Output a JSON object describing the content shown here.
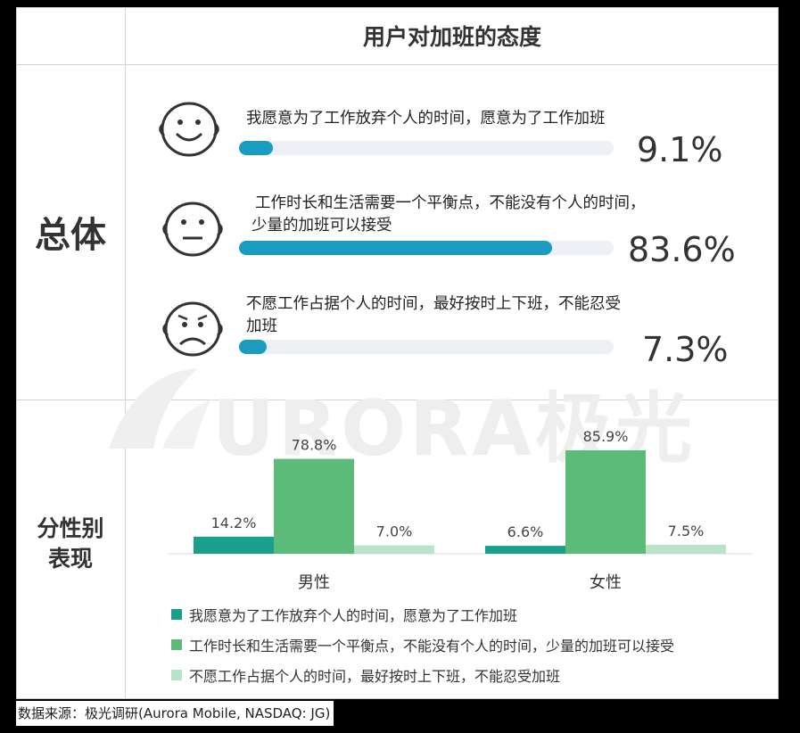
{
  "title": "用户对加班的态度",
  "overall_label": "总体",
  "gender_label_line1": "分性别",
  "gender_label_line2": "表现",
  "overall_items": [
    {
      "text_line1": "我愿意为了工作放弃个人的时间，愿意为了工作加班",
      "text_line2": "",
      "value": 9.1,
      "value_label": "9.1%",
      "face": "happy-face-icon"
    },
    {
      "text_line1": "工作时长和生活需要一个平衡点，不能没有个人的时间，",
      "text_line2": "少量的加班可以接受",
      "value": 83.6,
      "value_label": "83.6%",
      "face": "neutral-face-icon"
    },
    {
      "text_line1": "不愿工作占据个人的时间，最好按时上下班，不能忍受",
      "text_line2": "加班",
      "value": 7.3,
      "value_label": "7.3%",
      "face": "sad-face-icon"
    }
  ],
  "watermark": "URORA极光",
  "colors": {
    "bar_overall": "#1a9cc0",
    "track": "#edf0f4",
    "series1": "#1aa08a",
    "series2": "#5cbb78",
    "series3": "#b9e3c8"
  },
  "chart_data": {
    "type": "bar",
    "categories": [
      "男性",
      "女性"
    ],
    "series": [
      {
        "name": "我愿意为了工作放弃个人的时间，愿意为了工作加班",
        "values": [
          14.2,
          6.6
        ],
        "labels": [
          "14.2%",
          "6.6%"
        ]
      },
      {
        "name": "工作时长和生活需要一个平衡点，不能没有个人的时间，少量的加班可以接受",
        "values": [
          78.8,
          85.9
        ],
        "labels": [
          "78.8%",
          "85.9%"
        ]
      },
      {
        "name": "不愿工作占据个人的时间，最好按时上下班，不能忍受加班",
        "values": [
          7.0,
          7.5
        ],
        "labels": [
          "7.0%",
          "7.5%"
        ]
      }
    ],
    "ylim": [
      0,
      100
    ],
    "grid": false,
    "legend": "bottom"
  },
  "source": "数据来源：极光调研(Aurora Mobile, NASDAQ: JG)"
}
